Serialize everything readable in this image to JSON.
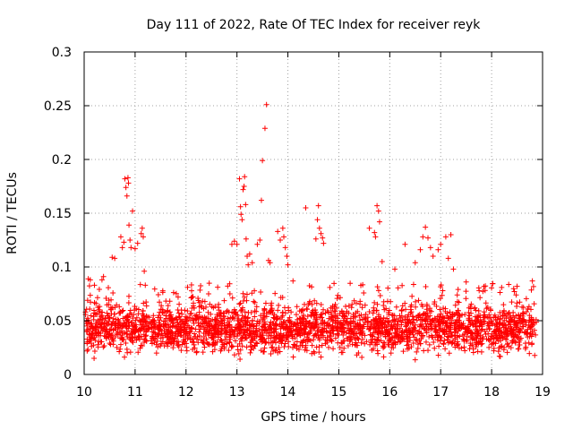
{
  "chart_data": {
    "type": "scatter",
    "title": "Day 111 of 2022, Rate Of TEC Index for receiver reyk",
    "xlabel": "GPS time / hours",
    "ylabel": "ROTI / TECUs",
    "xlim": [
      10,
      19
    ],
    "ylim": [
      0,
      0.3
    ],
    "xticks": [
      10,
      11,
      12,
      13,
      14,
      15,
      16,
      17,
      18,
      19
    ],
    "yticks": [
      0,
      0.05,
      0.1,
      0.15,
      0.2,
      0.25,
      0.3
    ],
    "xtick_labels": [
      "10",
      "11",
      "12",
      "13",
      "14",
      "15",
      "16",
      "17",
      "18",
      "19"
    ],
    "ytick_labels": [
      "0",
      "0.05",
      "0.1",
      "0.15",
      "0.2",
      "0.25",
      "0.3"
    ],
    "grid": true,
    "marker": "+",
    "color": "#ff0000",
    "series": [
      {
        "name": "ROTI",
        "notes": "dense band ~0.01-0.08 across 10.0-18.9 h; outlier points listed here",
        "x": [
          10.08,
          10.12,
          10.35,
          10.38,
          10.55,
          10.6,
          10.72,
          10.75,
          10.78,
          10.8,
          10.82,
          10.84,
          10.86,
          10.87,
          10.88,
          10.9,
          10.92,
          10.95,
          11.0,
          11.05,
          11.12,
          11.14,
          11.16,
          11.18,
          11.2,
          12.9,
          12.95,
          13.0,
          13.05,
          13.07,
          13.08,
          13.1,
          13.12,
          13.14,
          13.15,
          13.17,
          13.18,
          13.2,
          13.22,
          13.25,
          13.3,
          13.4,
          13.45,
          13.48,
          13.5,
          13.55,
          13.58,
          13.62,
          13.65,
          13.8,
          13.85,
          13.9,
          13.92,
          13.95,
          13.98,
          14.0,
          14.1,
          14.35,
          14.55,
          14.58,
          14.6,
          14.62,
          14.65,
          14.68,
          14.7,
          15.6,
          15.7,
          15.72,
          15.75,
          15.78,
          15.8,
          15.85,
          16.1,
          16.3,
          16.5,
          16.6,
          16.65,
          16.7,
          16.75,
          16.8,
          16.85,
          16.95,
          17.0,
          17.1,
          17.15,
          17.2,
          17.25,
          17.5,
          18.5,
          18.8
        ],
        "y": [
          0.089,
          0.088,
          0.088,
          0.091,
          0.109,
          0.108,
          0.128,
          0.118,
          0.123,
          0.182,
          0.174,
          0.166,
          0.183,
          0.178,
          0.139,
          0.125,
          0.118,
          0.152,
          0.117,
          0.122,
          0.131,
          0.136,
          0.128,
          0.096,
          0.083,
          0.121,
          0.124,
          0.121,
          0.182,
          0.156,
          0.149,
          0.144,
          0.172,
          0.175,
          0.184,
          0.158,
          0.126,
          0.11,
          0.102,
          0.112,
          0.104,
          0.121,
          0.125,
          0.162,
          0.199,
          0.229,
          0.251,
          0.106,
          0.104,
          0.133,
          0.125,
          0.136,
          0.128,
          0.118,
          0.11,
          0.102,
          0.087,
          0.155,
          0.126,
          0.144,
          0.157,
          0.136,
          0.131,
          0.127,
          0.122,
          0.136,
          0.132,
          0.128,
          0.157,
          0.152,
          0.142,
          0.105,
          0.098,
          0.121,
          0.104,
          0.116,
          0.128,
          0.137,
          0.127,
          0.118,
          0.11,
          0.116,
          0.121,
          0.128,
          0.108,
          0.13,
          0.098,
          0.086,
          0.082,
          0.087
        ]
      }
    ]
  }
}
